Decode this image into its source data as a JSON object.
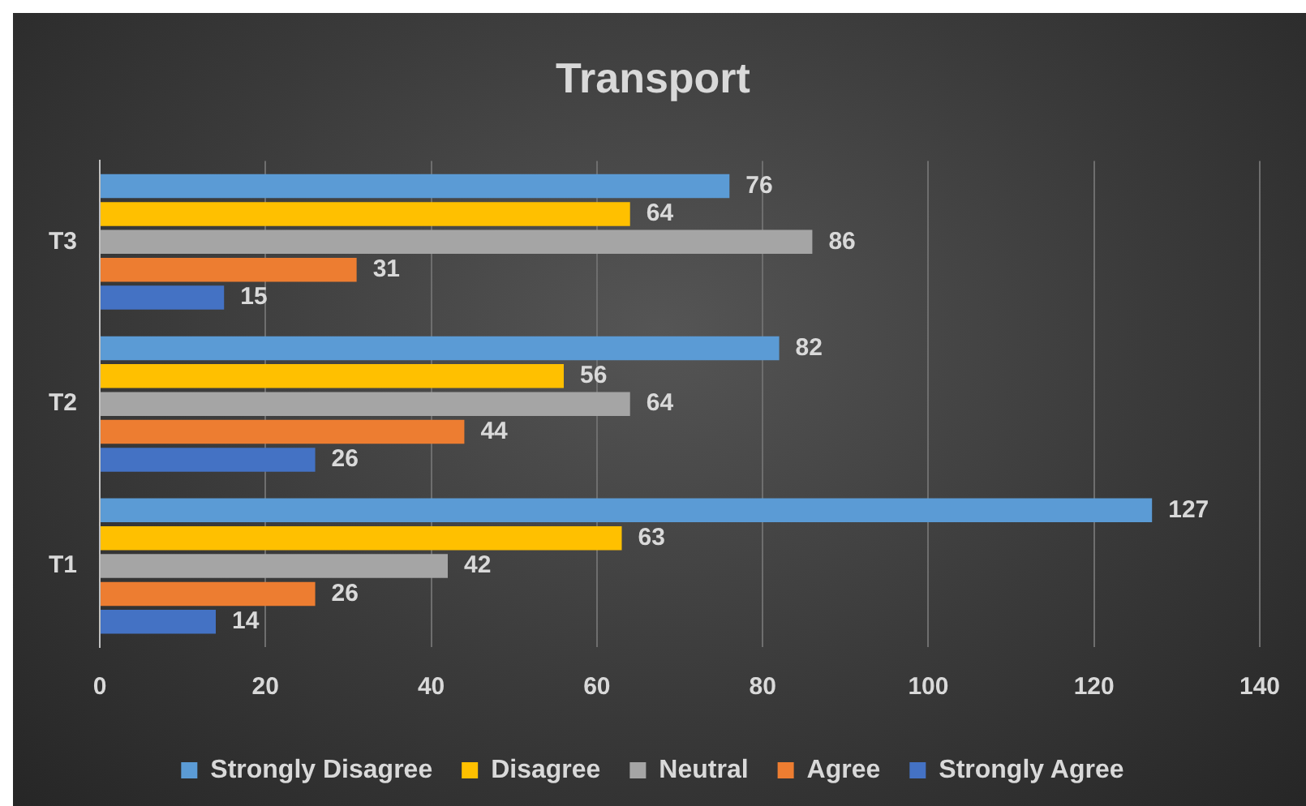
{
  "chart_data": {
    "type": "bar",
    "orientation": "horizontal",
    "title": "Transport",
    "categories": [
      "T3",
      "T2",
      "T1"
    ],
    "series": [
      {
        "name": "Strongly Disagree",
        "color": "#5b9bd5",
        "values": [
          76,
          82,
          127
        ]
      },
      {
        "name": "Disagree",
        "color": "#ffc000",
        "values": [
          64,
          56,
          63
        ]
      },
      {
        "name": "Neutral",
        "color": "#a5a5a5",
        "values": [
          86,
          64,
          42
        ]
      },
      {
        "name": "Agree",
        "color": "#ed7d31",
        "values": [
          31,
          44,
          26
        ]
      },
      {
        "name": "Strongly Agree",
        "color": "#4472c4",
        "values": [
          15,
          26,
          14
        ]
      }
    ],
    "xlim": [
      0,
      140
    ],
    "xticks": [
      0,
      20,
      40,
      60,
      80,
      100,
      120,
      140
    ],
    "grid": "x",
    "legend": "bottom",
    "data_labels": true
  }
}
